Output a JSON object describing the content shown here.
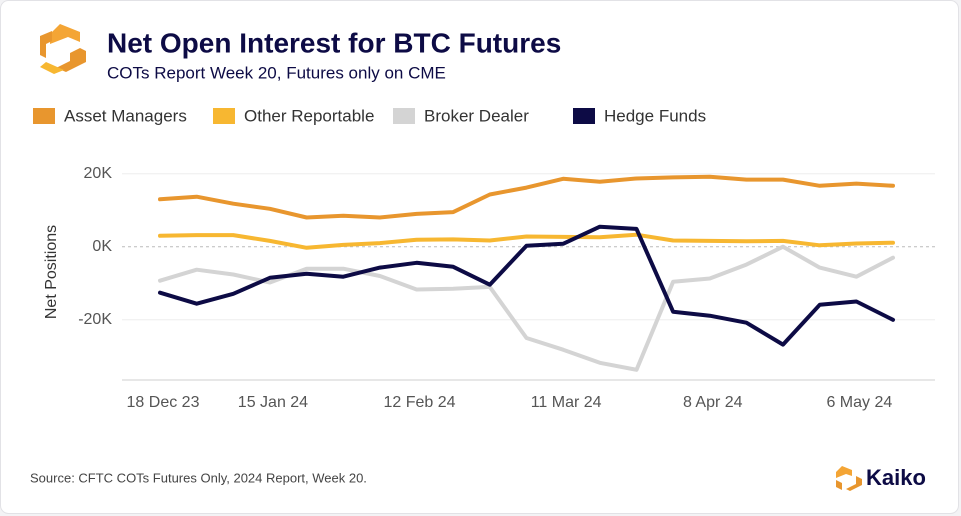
{
  "chart_data": {
    "type": "line",
    "title": "Net Open Interest for BTC Futures",
    "subtitle": "COTs Report Week 20, Futures only on CME",
    "ylabel": "Net Positions",
    "source": "Source: CFTC COTs Futures Only, 2024 Report, Week 20.",
    "brand": "Kaiko",
    "categories": [
      "18 Dec 23",
      null,
      null,
      "15 Jan 24",
      null,
      null,
      null,
      "12 Feb 24",
      null,
      null,
      null,
      "11 Mar 24",
      null,
      null,
      null,
      "8 Apr 24",
      null,
      null,
      null,
      "6 May 24",
      null
    ],
    "ylim": [
      -36500,
      26500
    ],
    "yticks": [
      {
        "value": 20000,
        "label": "20K"
      },
      {
        "value": 0,
        "label": "0K"
      },
      {
        "value": -20000,
        "label": "-20K"
      }
    ],
    "grid": true,
    "legend": "top",
    "series": [
      {
        "name": "Asset Managers",
        "color": "#e8962e",
        "values": [
          13000,
          13700,
          11800,
          10400,
          8000,
          8500,
          8000,
          9000,
          9500,
          14300,
          16200,
          18600,
          17800,
          18700,
          19000,
          19200,
          18400,
          18400,
          16700,
          17300,
          16700
        ]
      },
      {
        "name": "Other Reportable",
        "color": "#f7b731",
        "values": [
          3000,
          3200,
          3200,
          1600,
          -300,
          500,
          1000,
          1900,
          2000,
          1700,
          2800,
          2700,
          2600,
          3300,
          1700,
          1600,
          1500,
          1600,
          400,
          900,
          1100
        ]
      },
      {
        "name": "Broker Dealer",
        "color": "#d4d4d4",
        "values": [
          -9300,
          -6300,
          -7600,
          -9800,
          -6000,
          -6000,
          -8000,
          -11700,
          -11500,
          -11000,
          -25000,
          -28200,
          -31800,
          -33700,
          -9600,
          -8700,
          -4900,
          0,
          -5700,
          -8200,
          -3000
        ]
      },
      {
        "name": "Hedge Funds",
        "color": "#0d0b45",
        "values": [
          -12600,
          -15600,
          -12900,
          -8500,
          -7400,
          -8200,
          -5700,
          -4400,
          -5500,
          -10400,
          300,
          800,
          5500,
          4900,
          -17800,
          -18900,
          -20800,
          -26800,
          -15900,
          -15000,
          -20000
        ]
      }
    ]
  }
}
